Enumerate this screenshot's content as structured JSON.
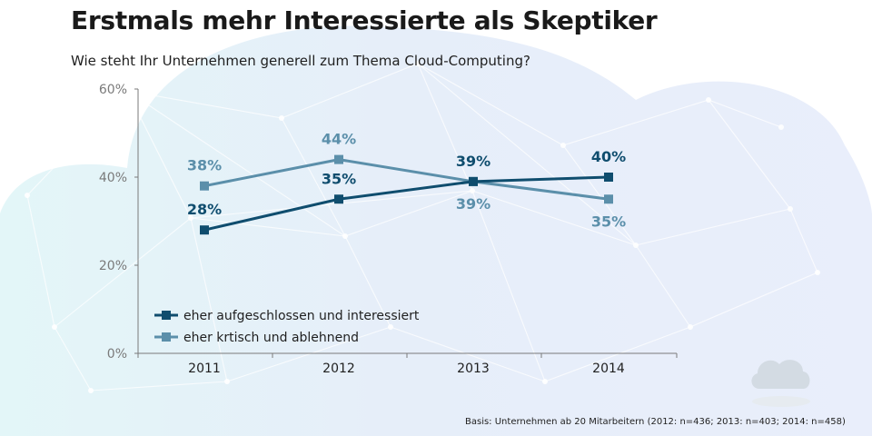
{
  "title": "Erstmals mehr Interessierte als Skeptiker",
  "subtitle": "Wie steht Ihr Unternehmen generell zum Thema Cloud-Computing?",
  "footnote": "Basis:  Unternehmen ab 20 Mitarbeitern (2012: n=436; 2013: n=403; 2014: n=458)",
  "colors": {
    "series_interested": "#0f4d6e",
    "series_critical": "#5b8faa",
    "axis": "#7a7a7a",
    "tick_label": "#7a7a7a"
  },
  "chart_data": {
    "type": "line",
    "title": "Erstmals mehr Interessierte als Skeptiker",
    "categories": [
      "2011",
      "2012",
      "2013",
      "2014"
    ],
    "y_ticks": [
      0,
      20,
      40,
      60
    ],
    "y_tick_labels": [
      "0%",
      "20%",
      "40%",
      "60%"
    ],
    "ylim": [
      0,
      60
    ],
    "grid": false,
    "legend_position": "bottom-left",
    "series": [
      {
        "name": "eher aufgeschlossen und interessiert",
        "values": [
          28,
          35,
          39,
          40
        ],
        "labels": [
          "28%",
          "35%",
          "39%",
          "40%"
        ],
        "color_key": "series_interested"
      },
      {
        "name": "eher krtisch und ablehnend",
        "values": [
          38,
          44,
          39,
          35
        ],
        "labels": [
          "38%",
          "44%",
          "39%",
          "35%"
        ],
        "color_key": "series_critical"
      }
    ]
  }
}
